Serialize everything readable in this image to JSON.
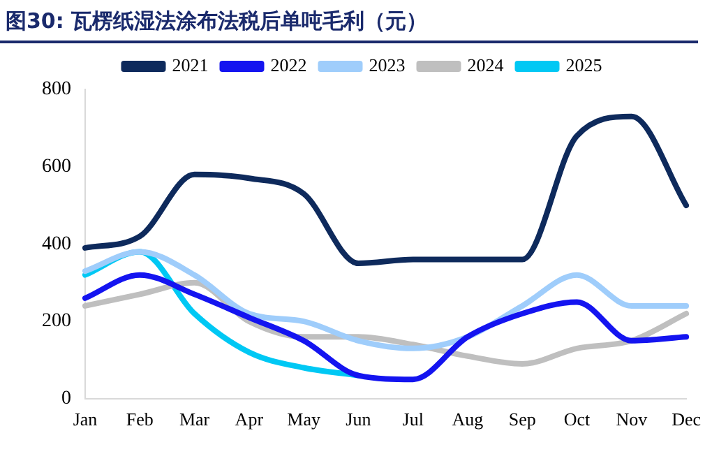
{
  "chart_data": {
    "type": "line",
    "title": "图30:  瓦楞纸湿法涂布法税后单吨毛利（元）",
    "categories": [
      "Jan",
      "Feb",
      "Mar",
      "Apr",
      "May",
      "Jun",
      "Jul",
      "Aug",
      "Sep",
      "Oct",
      "Nov",
      "Dec"
    ],
    "series": [
      {
        "name": "2021",
        "color": "#0e2a5c",
        "values": [
          390,
          420,
          580,
          570,
          530,
          350,
          360,
          360,
          360,
          680,
          730,
          500
        ]
      },
      {
        "name": "2022",
        "color": "#1414f0",
        "values": [
          260,
          320,
          270,
          210,
          150,
          60,
          50,
          160,
          220,
          250,
          150,
          160
        ]
      },
      {
        "name": "2023",
        "color": "#9fcdfb",
        "values": [
          330,
          380,
          320,
          220,
          200,
          150,
          130,
          160,
          240,
          320,
          240,
          240
        ]
      },
      {
        "name": "2024",
        "color": "#bfbfbf",
        "values": [
          240,
          270,
          300,
          200,
          160,
          160,
          140,
          110,
          90,
          130,
          150,
          220
        ]
      },
      {
        "name": "2025",
        "color": "#00c8f4",
        "values": [
          320,
          380,
          220,
          120,
          80,
          60,
          null,
          null,
          null,
          null,
          null,
          null
        ]
      }
    ],
    "ylim": [
      0,
      800
    ],
    "yticks": [
      0,
      200,
      400,
      600,
      800
    ],
    "grid": false,
    "legend": "top",
    "marker": "none",
    "line_style": "solid"
  }
}
